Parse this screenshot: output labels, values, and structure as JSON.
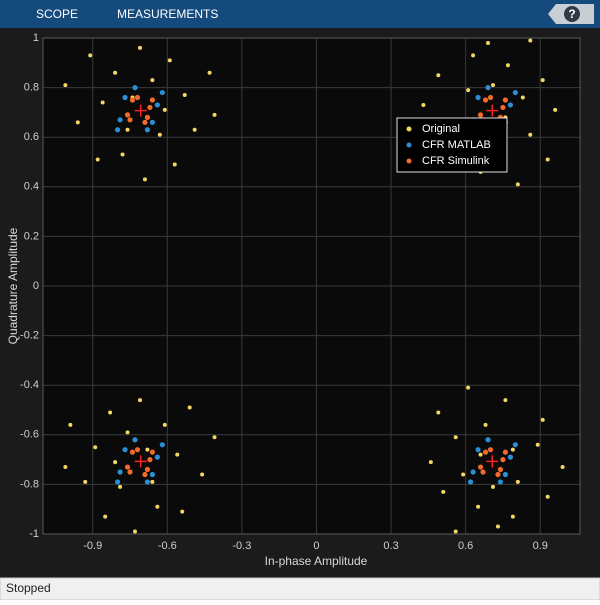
{
  "toolbar": {
    "tabs": [
      "SCOPE",
      "MEASUREMENTS"
    ],
    "help": "?"
  },
  "status_bar": "Stopped",
  "chart_data": {
    "type": "scatter",
    "xlabel": "In-phase Amplitude",
    "ylabel": "Quadrature Amplitude",
    "xlim": [
      -1.1,
      1.06
    ],
    "ylim": [
      -1,
      1
    ],
    "xticks": [
      -0.9,
      -0.6,
      -0.3,
      0,
      0.3,
      0.6,
      0.9
    ],
    "yticks": [
      -1,
      -0.8,
      -0.6,
      -0.4,
      -0.2,
      0,
      0.2,
      0.4,
      0.6,
      0.8,
      1
    ],
    "grid": true,
    "legend_loc": "northeast",
    "series": [
      {
        "name": "Original",
        "color": "#f4d763",
        "x": [
          -0.66,
          -0.86,
          -0.49,
          -0.78,
          -0.59,
          -0.96,
          -0.69,
          -0.53,
          -0.81,
          -0.63,
          -0.91,
          -0.43,
          -0.74,
          -0.57,
          -0.88,
          -0.41,
          -1.01,
          -0.71,
          -0.61,
          -0.76,
          0.83,
          0.74,
          0.63,
          0.53,
          0.91,
          0.66,
          0.43,
          0.77,
          0.86,
          0.61,
          0.93,
          0.86,
          0.76,
          0.49,
          0.51,
          0.69,
          0.81,
          0.96,
          0.71,
          0.63,
          -0.76,
          -0.56,
          -0.93,
          -0.64,
          -0.83,
          -0.46,
          -0.73,
          -0.89,
          -0.61,
          -0.79,
          -0.51,
          -0.99,
          -0.68,
          -0.85,
          -0.54,
          -1.01,
          -0.41,
          -0.71,
          -0.81,
          -0.66,
          0.59,
          0.68,
          0.79,
          0.89,
          0.51,
          0.76,
          0.99,
          0.65,
          0.56,
          0.81,
          0.49,
          0.56,
          0.66,
          0.93,
          0.91,
          0.73,
          0.61,
          0.46,
          0.71,
          0.79
        ],
        "y": [
          0.83,
          0.74,
          0.63,
          0.53,
          0.91,
          0.66,
          0.43,
          0.77,
          0.86,
          0.61,
          0.93,
          0.86,
          0.76,
          0.49,
          0.51,
          0.69,
          0.81,
          0.96,
          0.71,
          0.63,
          0.76,
          0.56,
          0.93,
          0.64,
          0.83,
          0.46,
          0.73,
          0.89,
          0.61,
          0.79,
          0.51,
          0.99,
          0.68,
          0.85,
          0.54,
          0.98,
          0.41,
          0.71,
          0.81,
          0.66,
          -0.59,
          -0.68,
          -0.79,
          -0.89,
          -0.51,
          -0.76,
          -0.99,
          -0.65,
          -0.56,
          -0.81,
          -0.49,
          -0.56,
          -0.66,
          -0.93,
          -0.91,
          -0.73,
          -0.61,
          -0.46,
          -0.71,
          -0.79,
          -0.76,
          -0.56,
          -0.93,
          -0.64,
          -0.83,
          -0.46,
          -0.73,
          -0.89,
          -0.61,
          -0.79,
          -0.51,
          -0.99,
          -0.68,
          -0.85,
          -0.54,
          -0.97,
          -0.41,
          -0.71,
          -0.81,
          -0.66
        ]
      },
      {
        "name": "CFR MATLAB",
        "color": "#2a8fd6",
        "x": [
          -0.64,
          -0.77,
          -0.68,
          -0.79,
          -0.62,
          -0.73,
          -0.66,
          -0.8,
          0.78,
          0.65,
          0.74,
          0.63,
          0.8,
          0.69,
          0.76,
          0.62,
          -0.64,
          -0.77,
          -0.68,
          -0.79,
          -0.62,
          -0.73,
          -0.66,
          -0.8,
          0.78,
          0.65,
          0.74,
          0.63,
          0.8,
          0.69,
          0.76,
          0.62
        ],
        "y": [
          0.73,
          0.76,
          0.63,
          0.67,
          0.78,
          0.8,
          0.66,
          0.63,
          0.73,
          0.76,
          0.63,
          0.67,
          0.78,
          0.8,
          0.66,
          0.63,
          -0.69,
          -0.66,
          -0.79,
          -0.75,
          -0.64,
          -0.62,
          -0.76,
          -0.79,
          -0.69,
          -0.66,
          -0.79,
          -0.75,
          -0.64,
          -0.62,
          -0.76,
          -0.79
        ]
      },
      {
        "name": "CFR Simulink",
        "color": "#f26b2a",
        "x": [
          -0.67,
          -0.74,
          -0.69,
          -0.76,
          -0.66,
          -0.72,
          -0.68,
          -0.75,
          0.75,
          0.68,
          0.73,
          0.66,
          0.76,
          0.7,
          0.74,
          0.67,
          -0.67,
          -0.74,
          -0.69,
          -0.76,
          -0.66,
          -0.72,
          -0.68,
          -0.75,
          0.75,
          0.68,
          0.73,
          0.66,
          0.76,
          0.7,
          0.74,
          0.67
        ],
        "y": [
          0.72,
          0.75,
          0.66,
          0.69,
          0.75,
          0.76,
          0.68,
          0.67,
          0.72,
          0.75,
          0.66,
          0.69,
          0.75,
          0.76,
          0.68,
          0.67,
          -0.7,
          -0.67,
          -0.76,
          -0.73,
          -0.67,
          -0.66,
          -0.74,
          -0.75,
          -0.7,
          -0.67,
          -0.76,
          -0.73,
          -0.67,
          -0.66,
          -0.74,
          -0.75
        ]
      }
    ],
    "reference": {
      "color": "#ff2020",
      "x": [
        -0.707,
        0.707,
        -0.707,
        0.707
      ],
      "y": [
        0.707,
        0.707,
        -0.707,
        -0.707
      ]
    }
  }
}
